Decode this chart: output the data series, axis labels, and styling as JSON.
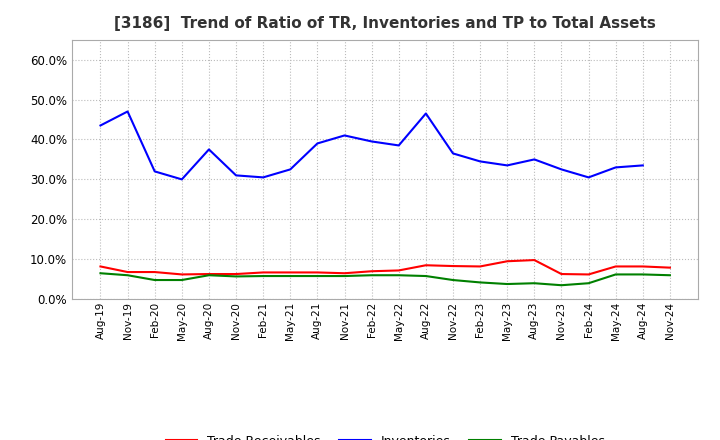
{
  "title": "[3186]  Trend of Ratio of TR, Inventories and TP to Total Assets",
  "x_labels": [
    "Aug-19",
    "Nov-19",
    "Feb-20",
    "May-20",
    "Aug-20",
    "Nov-20",
    "Feb-21",
    "May-21",
    "Aug-21",
    "Nov-21",
    "Feb-22",
    "May-22",
    "Aug-22",
    "Nov-22",
    "Feb-23",
    "May-23",
    "Aug-23",
    "Nov-23",
    "Feb-24",
    "May-24",
    "Aug-24",
    "Nov-24"
  ],
  "trade_receivables": [
    0.082,
    0.068,
    0.068,
    0.062,
    0.063,
    0.063,
    0.067,
    0.067,
    0.067,
    0.065,
    0.07,
    0.072,
    0.085,
    0.083,
    0.082,
    0.095,
    0.098,
    0.063,
    0.062,
    0.082,
    0.082,
    0.079
  ],
  "inventories": [
    0.435,
    0.47,
    0.32,
    0.3,
    0.375,
    0.31,
    0.305,
    0.325,
    0.39,
    0.41,
    0.395,
    0.385,
    0.465,
    0.365,
    0.345,
    0.335,
    0.35,
    0.325,
    0.305,
    0.33,
    0.335,
    null
  ],
  "trade_payables": [
    0.065,
    0.06,
    0.048,
    0.048,
    0.06,
    0.057,
    0.058,
    0.058,
    0.058,
    0.058,
    0.06,
    0.06,
    0.058,
    0.048,
    0.042,
    0.038,
    0.04,
    0.035,
    0.04,
    0.062,
    0.062,
    0.06
  ],
  "tr_color": "#ff0000",
  "inv_color": "#0000ff",
  "tp_color": "#008000",
  "ylim": [
    0.0,
    0.65
  ],
  "yticks": [
    0.0,
    0.1,
    0.2,
    0.3,
    0.4,
    0.5,
    0.6
  ],
  "background_color": "#ffffff",
  "grid_color": "#bbbbbb"
}
